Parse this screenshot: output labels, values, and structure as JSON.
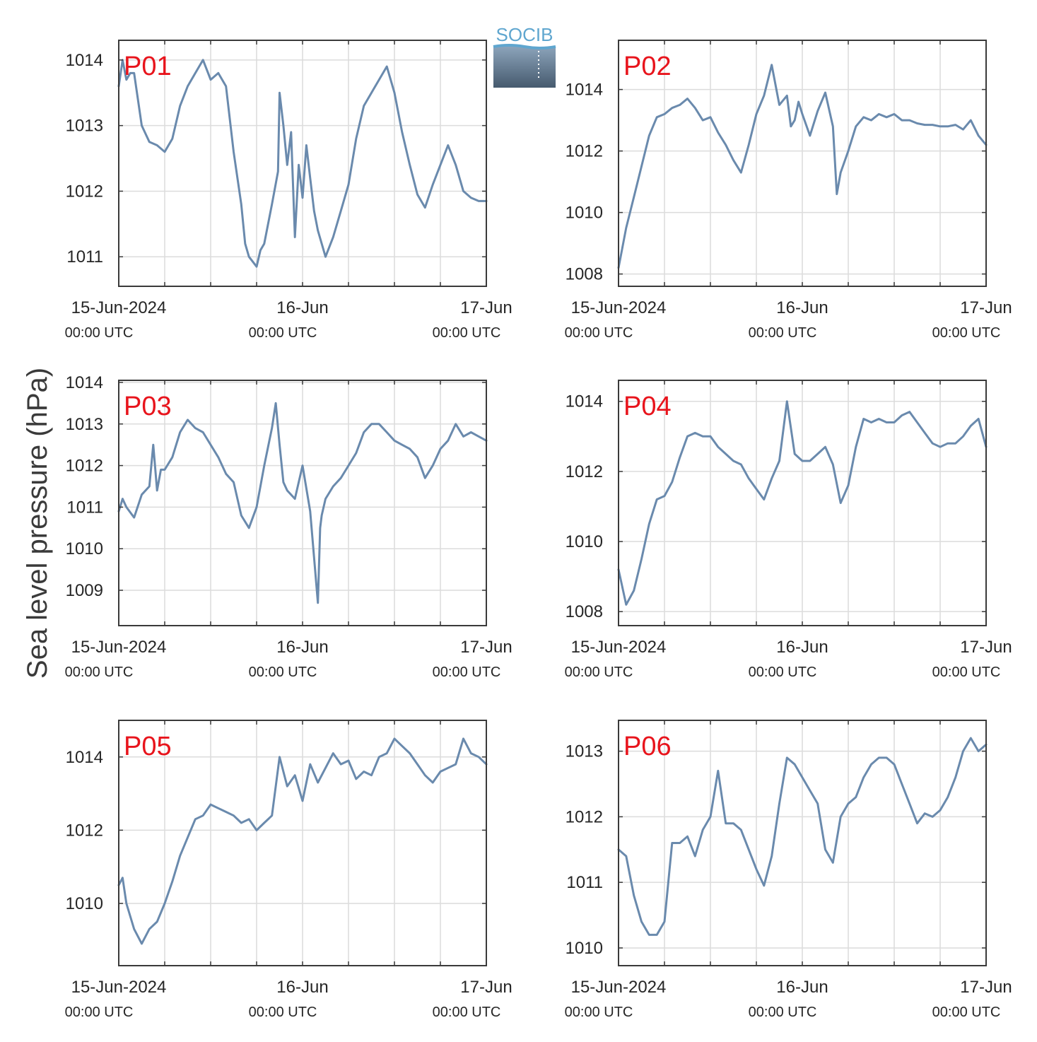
{
  "figure": {
    "ylabel": "Sea level pressure (hPa)",
    "logo_text": "SOCIB",
    "line_color": "#6a8aad",
    "label_color": "#e8141c",
    "grid_color": "#dcdcdc",
    "axis_color": "#3a3a3a"
  },
  "chart_data": [
    {
      "type": "line",
      "title": "P01",
      "x_ticks": [
        {
          "label": "15-Jun-2024",
          "sub": "00:00 UTC"
        },
        {
          "label": "16-Jun",
          "sub": "00:00 UTC"
        },
        {
          "label": "17-Jun",
          "sub": "00:00 UTC"
        }
      ],
      "xlim": [
        0,
        48
      ],
      "ylim": [
        1010.55,
        1014.3
      ],
      "yticks": [
        1011,
        1012,
        1013,
        1014
      ],
      "x": [
        0,
        0.5,
        1,
        1.5,
        2,
        3,
        4,
        5,
        6,
        7,
        8,
        9,
        10,
        11,
        12,
        13,
        14,
        15,
        16,
        16.5,
        17,
        18,
        18.5,
        19,
        20,
        20.8,
        21,
        21.5,
        22,
        22.5,
        23,
        23.5,
        24,
        24.5,
        25,
        25.5,
        26,
        27,
        28,
        29,
        30,
        31,
        32,
        33,
        34,
        35,
        36,
        37,
        38,
        39,
        40,
        41,
        42,
        43,
        44,
        45,
        46,
        47,
        48
      ],
      "series": [
        {
          "values": [
            1013.6,
            1014.0,
            1013.7,
            1013.8,
            1013.8,
            1013.0,
            1012.75,
            1012.7,
            1012.6,
            1012.8,
            1013.3,
            1013.6,
            1013.8,
            1014.0,
            1013.7,
            1013.8,
            1013.6,
            1012.6,
            1011.8,
            1011.2,
            1011.0,
            1010.85,
            1011.1,
            1011.2,
            1011.8,
            1012.3,
            1013.5,
            1013.0,
            1012.4,
            1012.9,
            1011.3,
            1012.4,
            1011.9,
            1012.7,
            1012.2,
            1011.7,
            1011.4,
            1011.0,
            1011.3,
            1011.7,
            1012.1,
            1012.8,
            1013.3,
            1013.5,
            1013.7,
            1013.9,
            1013.5,
            1012.9,
            1012.4,
            1011.95,
            1011.75,
            1012.1,
            1012.4,
            1012.7,
            1012.4,
            1012.0,
            1011.9,
            1011.85,
            1011.85
          ]
        }
      ]
    },
    {
      "type": "line",
      "title": "P02",
      "x_ticks": [
        {
          "label": "15-Jun-2024",
          "sub": "00:00 UTC"
        },
        {
          "label": "16-Jun",
          "sub": "00:00 UTC"
        },
        {
          "label": "17-Jun",
          "sub": "00:00 UTC"
        }
      ],
      "xlim": [
        0,
        48
      ],
      "ylim": [
        1007.6,
        1015.6
      ],
      "yticks": [
        1008,
        1010,
        1012,
        1014
      ],
      "x": [
        0,
        1,
        2,
        3,
        4,
        5,
        6,
        7,
        8,
        9,
        10,
        11,
        12,
        13,
        14,
        15,
        16,
        17,
        18,
        19,
        20,
        21,
        22,
        22.5,
        23,
        23.5,
        24,
        25,
        26,
        27,
        28,
        28.5,
        29,
        30,
        31,
        32,
        33,
        34,
        35,
        36,
        37,
        38,
        39,
        40,
        41,
        42,
        43,
        44,
        45,
        46,
        47,
        48
      ],
      "series": [
        {
          "values": [
            1008.2,
            1009.5,
            1010.5,
            1011.5,
            1012.5,
            1013.1,
            1013.2,
            1013.4,
            1013.5,
            1013.7,
            1013.4,
            1013.0,
            1013.1,
            1012.6,
            1012.2,
            1011.7,
            1011.3,
            1012.2,
            1013.2,
            1013.8,
            1014.8,
            1013.5,
            1013.8,
            1012.8,
            1013.0,
            1013.6,
            1013.2,
            1012.5,
            1013.3,
            1013.9,
            1012.8,
            1010.6,
            1011.3,
            1012.0,
            1012.8,
            1013.1,
            1013.0,
            1013.2,
            1013.1,
            1013.2,
            1013.0,
            1013.0,
            1012.9,
            1012.85,
            1012.85,
            1012.8,
            1012.8,
            1012.85,
            1012.7,
            1013.0,
            1012.5,
            1012.2
          ]
        }
      ]
    },
    {
      "type": "line",
      "title": "P03",
      "x_ticks": [
        {
          "label": "15-Jun-2024",
          "sub": "00:00 UTC"
        },
        {
          "label": "16-Jun",
          "sub": "00:00 UTC"
        },
        {
          "label": "17-Jun",
          "sub": "00:00 UTC"
        }
      ],
      "xlim": [
        0,
        48
      ],
      "ylim": [
        1008.15,
        1014.05
      ],
      "yticks": [
        1009,
        1010,
        1011,
        1012,
        1013,
        1014
      ],
      "x": [
        0,
        0.5,
        1,
        2,
        3,
        4,
        4.5,
        5,
        5.5,
        6,
        7,
        8,
        9,
        10,
        11,
        12,
        13,
        14,
        15,
        16,
        17,
        18,
        19,
        20,
        20.5,
        21,
        21.5,
        22,
        23,
        24,
        25,
        26,
        26.3,
        26.5,
        27,
        28,
        29,
        30,
        31,
        32,
        33,
        34,
        35,
        36,
        37,
        38,
        39,
        40,
        41,
        42,
        43,
        44,
        45,
        46,
        47,
        48
      ],
      "series": [
        {
          "values": [
            1010.9,
            1011.2,
            1011.0,
            1010.75,
            1011.3,
            1011.5,
            1012.5,
            1011.4,
            1011.9,
            1011.9,
            1012.2,
            1012.8,
            1013.1,
            1012.9,
            1012.8,
            1012.5,
            1012.2,
            1011.8,
            1011.6,
            1010.8,
            1010.5,
            1011.0,
            1012.0,
            1012.9,
            1013.5,
            1012.5,
            1011.6,
            1011.4,
            1011.2,
            1012.0,
            1010.9,
            1008.7,
            1010.5,
            1010.8,
            1011.2,
            1011.5,
            1011.7,
            1012.0,
            1012.3,
            1012.8,
            1013.0,
            1013.0,
            1012.8,
            1012.6,
            1012.5,
            1012.4,
            1012.2,
            1011.7,
            1012.0,
            1012.4,
            1012.6,
            1013.0,
            1012.7,
            1012.8,
            1012.7,
            1012.6
          ]
        }
      ]
    },
    {
      "type": "line",
      "title": "P04",
      "x_ticks": [
        {
          "label": "15-Jun-2024",
          "sub": "00:00 UTC"
        },
        {
          "label": "16-Jun",
          "sub": "00:00 UTC"
        },
        {
          "label": "17-Jun",
          "sub": "00:00 UTC"
        }
      ],
      "xlim": [
        0,
        48
      ],
      "ylim": [
        1007.6,
        1014.6
      ],
      "yticks": [
        1008,
        1010,
        1012,
        1014
      ],
      "x": [
        0,
        1,
        2,
        3,
        4,
        5,
        6,
        7,
        8,
        9,
        10,
        11,
        12,
        13,
        14,
        15,
        16,
        17,
        18,
        19,
        20,
        21,
        22,
        23,
        24,
        25,
        26,
        27,
        28,
        29,
        30,
        31,
        32,
        33,
        34,
        35,
        36,
        37,
        38,
        39,
        40,
        41,
        42,
        43,
        44,
        45,
        46,
        47,
        48
      ],
      "series": [
        {
          "values": [
            1009.2,
            1008.2,
            1008.6,
            1009.5,
            1010.5,
            1011.2,
            1011.3,
            1011.7,
            1012.4,
            1013.0,
            1013.1,
            1013.0,
            1013.0,
            1012.7,
            1012.5,
            1012.3,
            1012.2,
            1011.8,
            1011.5,
            1011.2,
            1011.8,
            1012.3,
            1014.0,
            1012.5,
            1012.3,
            1012.3,
            1012.5,
            1012.7,
            1012.2,
            1011.1,
            1011.6,
            1012.7,
            1013.5,
            1013.4,
            1013.5,
            1013.4,
            1013.4,
            1013.6,
            1013.7,
            1013.4,
            1013.1,
            1012.8,
            1012.7,
            1012.8,
            1012.8,
            1013.0,
            1013.3,
            1013.5,
            1012.7
          ]
        }
      ]
    },
    {
      "type": "line",
      "title": "P05",
      "x_ticks": [
        {
          "label": "15-Jun-2024",
          "sub": "00:00 UTC"
        },
        {
          "label": "16-Jun",
          "sub": "00:00 UTC"
        },
        {
          "label": "17-Jun",
          "sub": "00:00 UTC"
        }
      ],
      "xlim": [
        0,
        48
      ],
      "ylim": [
        1008.3,
        1015.0
      ],
      "yticks": [
        1010,
        1012,
        1014
      ],
      "x": [
        0,
        0.5,
        1,
        2,
        3,
        4,
        5,
        6,
        7,
        8,
        9,
        10,
        11,
        12,
        13,
        14,
        15,
        16,
        17,
        18,
        19,
        20,
        21,
        22,
        23,
        24,
        25,
        26,
        27,
        28,
        29,
        30,
        31,
        32,
        33,
        34,
        35,
        36,
        37,
        38,
        39,
        40,
        41,
        42,
        43,
        44,
        45,
        46,
        47,
        48
      ],
      "series": [
        {
          "values": [
            1010.5,
            1010.7,
            1010.0,
            1009.3,
            1008.9,
            1009.3,
            1009.5,
            1010.0,
            1010.6,
            1011.3,
            1011.8,
            1012.3,
            1012.4,
            1012.7,
            1012.6,
            1012.5,
            1012.4,
            1012.2,
            1012.3,
            1012.0,
            1012.2,
            1012.4,
            1014.0,
            1013.2,
            1013.5,
            1012.8,
            1013.8,
            1013.3,
            1013.7,
            1014.1,
            1013.8,
            1013.9,
            1013.4,
            1013.6,
            1013.5,
            1014.0,
            1014.1,
            1014.5,
            1014.3,
            1014.1,
            1013.8,
            1013.5,
            1013.3,
            1013.6,
            1013.7,
            1013.8,
            1014.5,
            1014.1,
            1014.0,
            1013.8
          ]
        }
      ]
    },
    {
      "type": "line",
      "title": "P06",
      "x_ticks": [
        {
          "label": "15-Jun-2024",
          "sub": "00:00 UTC"
        },
        {
          "label": "16-Jun",
          "sub": "00:00 UTC"
        },
        {
          "label": "17-Jun",
          "sub": "00:00 UTC"
        }
      ],
      "xlim": [
        0,
        48
      ],
      "ylim": [
        1009.73,
        1013.47
      ],
      "yticks": [
        1010,
        1011,
        1012,
        1013
      ],
      "x": [
        0,
        1,
        2,
        3,
        4,
        5,
        6,
        7,
        8,
        9,
        10,
        11,
        12,
        13,
        14,
        15,
        16,
        17,
        18,
        19,
        20,
        21,
        22,
        23,
        24,
        25,
        26,
        27,
        28,
        29,
        30,
        31,
        32,
        33,
        34,
        35,
        36,
        37,
        38,
        39,
        40,
        41,
        42,
        43,
        44,
        45,
        46,
        47,
        48
      ],
      "series": [
        {
          "values": [
            1011.5,
            1011.4,
            1010.8,
            1010.4,
            1010.2,
            1010.2,
            1010.4,
            1011.6,
            1011.6,
            1011.7,
            1011.4,
            1011.8,
            1012.0,
            1012.7,
            1011.9,
            1011.9,
            1011.8,
            1011.5,
            1011.2,
            1010.95,
            1011.4,
            1012.2,
            1012.9,
            1012.8,
            1012.6,
            1012.4,
            1012.2,
            1011.5,
            1011.3,
            1012.0,
            1012.2,
            1012.3,
            1012.6,
            1012.8,
            1012.9,
            1012.9,
            1012.8,
            1012.5,
            1012.2,
            1011.9,
            1012.05,
            1012.0,
            1012.1,
            1012.3,
            1012.6,
            1013.0,
            1013.2,
            1013.0,
            1013.1
          ]
        }
      ]
    }
  ]
}
